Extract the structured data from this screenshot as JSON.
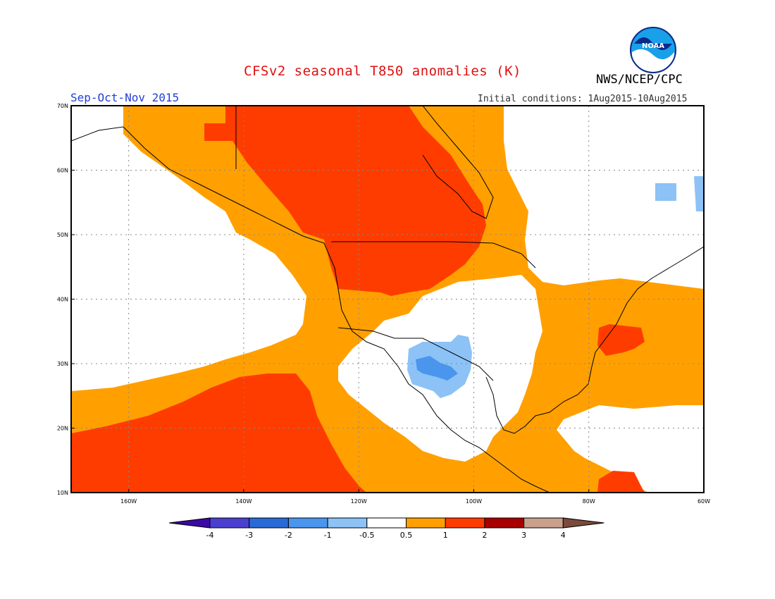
{
  "header": {
    "title": "CFSv2 seasonal T850 anomalies (K)",
    "agency": "NWS/NCEP/CPC",
    "season": "Sep-Oct-Nov 2015",
    "initial_conditions": "Initial conditions: 1Aug2015-10Aug2015",
    "logo_text": "NOAA"
  },
  "map": {
    "lon_range": [
      -170,
      -60
    ],
    "lat_range": [
      10,
      70
    ],
    "lat_ticks": [
      "10N",
      "20N",
      "30N",
      "40N",
      "50N",
      "60N",
      "70N"
    ],
    "lon_ticks": [
      "160W",
      "140W",
      "120W",
      "100W",
      "80W",
      "60W"
    ]
  },
  "legend": {
    "labels": [
      "-4",
      "-3",
      "-2",
      "-1",
      "-0.5",
      "0.5",
      "1",
      "2",
      "3",
      "4"
    ],
    "colors": [
      "#3b08a8",
      "#4b3fd0",
      "#2a6ad4",
      "#4a96ee",
      "#8cc2f6",
      "#ffffff",
      "#ffa000",
      "#ff3c00",
      "#a80000",
      "#c8a08c",
      "#7a4a3a"
    ]
  },
  "colors": {
    "warm_1": "#ffa000",
    "warm_2": "#ff3c00",
    "cool_1": "#8cc2f6",
    "cool_2": "#4a96ee",
    "title_red": "#e01010",
    "season_blue": "#1f3fd6"
  }
}
